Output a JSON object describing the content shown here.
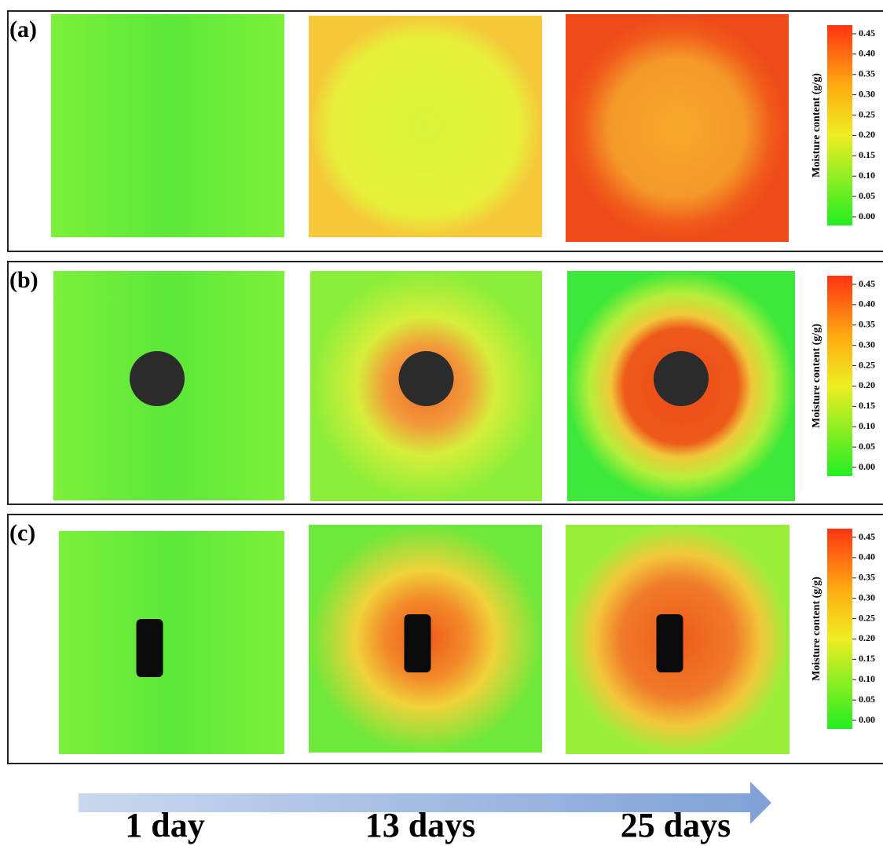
{
  "panels": [
    {
      "label": "(a)",
      "colorbar": {
        "title": "Moisture content (g/g)",
        "ticks": [
          "0.45",
          "0.40",
          "0.35",
          "0.30",
          "0.25",
          "0.20",
          "0.15",
          "0.10",
          "0.05",
          "0.00"
        ]
      }
    },
    {
      "label": "(b)",
      "colorbar": {
        "title": "Moisture content (g/g)",
        "ticks": [
          "0.45",
          "0.40",
          "0.35",
          "0.30",
          "0.25",
          "0.20",
          "0.15",
          "0.10",
          "0.05",
          "0.00"
        ]
      }
    },
    {
      "label": "(c)",
      "colorbar": {
        "title": "Moisture content (g/g)",
        "ticks": [
          "0.45",
          "0.40",
          "0.35",
          "0.30",
          "0.25",
          "0.20",
          "0.15",
          "0.10",
          "0.05",
          "0.00"
        ]
      }
    }
  ],
  "time_labels": [
    "1 day",
    "13 days",
    "25 days"
  ]
}
